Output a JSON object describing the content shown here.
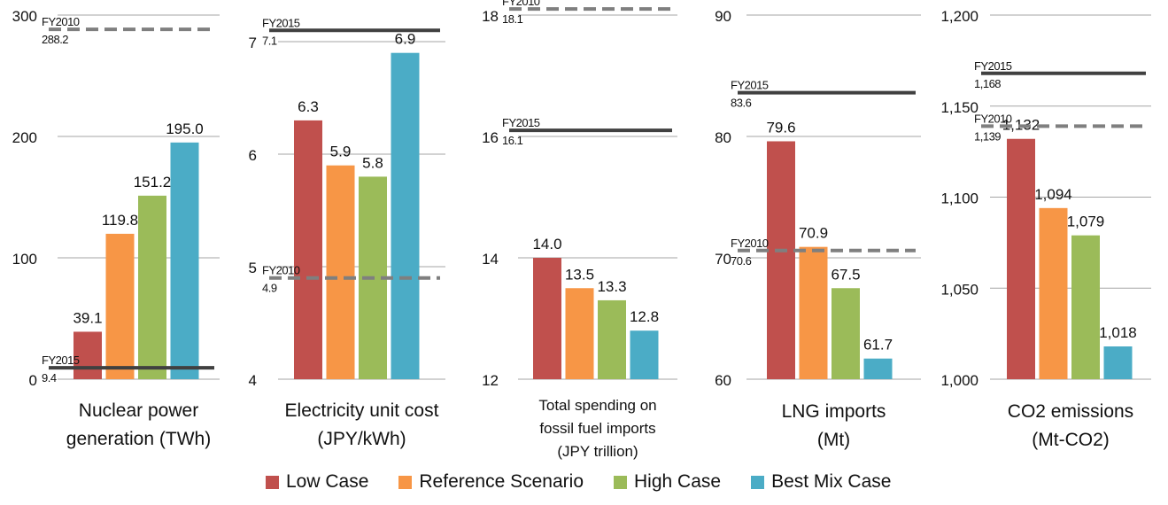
{
  "chart_data": [
    {
      "type": "bar",
      "title_lines": [
        "Nuclear power",
        "generation (TWh)"
      ],
      "categories": [
        "Low Case",
        "Reference Scenario",
        "High Case",
        "Best Mix Case"
      ],
      "values": [
        39.1,
        119.8,
        151.2,
        195.0
      ],
      "value_labels": [
        "39.1",
        "119.8",
        "151.2",
        "195.0"
      ],
      "ylim": [
        0,
        300
      ],
      "ticks": [
        0,
        100,
        200,
        300
      ],
      "tick_labels": [
        "0",
        "100",
        "200",
        "300"
      ],
      "references": [
        {
          "year": "FY2010",
          "value": 288.2,
          "label": "288.2",
          "style": "dashed"
        },
        {
          "year": "FY2015",
          "value": 9.4,
          "label": "9.4",
          "style": "solid"
        }
      ]
    },
    {
      "type": "bar",
      "title_lines": [
        "Electricity unit cost",
        "(JPY/kWh)"
      ],
      "categories": [
        "Low Case",
        "Reference Scenario",
        "High Case",
        "Best Mix Case"
      ],
      "values": [
        6.3,
        5.9,
        5.8,
        6.9
      ],
      "value_labels": [
        "6.3",
        "5.9",
        "5.8",
        "6.9"
      ],
      "ylim": [
        4,
        7.2
      ],
      "ticks": [
        4,
        5,
        6,
        7
      ],
      "tick_labels": [
        "4",
        "5",
        "6",
        "7"
      ],
      "references": [
        {
          "year": "FY2015",
          "value": 7.1,
          "label": "7.1",
          "style": "solid"
        },
        {
          "year": "FY2010",
          "value": 4.9,
          "label": "4.9",
          "style": "dashed"
        }
      ]
    },
    {
      "type": "bar",
      "title_lines": [
        "Total spending on",
        "fossil fuel imports",
        "(JPY trillion)"
      ],
      "categories": [
        "Low Case",
        "Reference Scenario",
        "High Case",
        "Best Mix Case"
      ],
      "values": [
        14.0,
        13.5,
        13.3,
        12.8
      ],
      "value_labels": [
        "14.0",
        "13.5",
        "13.3",
        "12.8"
      ],
      "ylim": [
        12,
        18.5
      ],
      "ticks": [
        12,
        14,
        16,
        18
      ],
      "tick_labels": [
        "12",
        "14",
        "16",
        "18"
      ],
      "references": [
        {
          "year": "FY2010",
          "value": 18.1,
          "label": "18.1",
          "style": "dashed"
        },
        {
          "year": "FY2015",
          "value": 16.1,
          "label": "16.1",
          "style": "solid"
        }
      ]
    },
    {
      "type": "bar",
      "title_lines": [
        "LNG imports",
        "(Mt)"
      ],
      "categories": [
        "Low Case",
        "Reference Scenario",
        "High Case",
        "Best Mix Case"
      ],
      "values": [
        79.6,
        70.9,
        67.5,
        61.7
      ],
      "value_labels": [
        "79.6",
        "70.9",
        "67.5",
        "61.7"
      ],
      "ylim": [
        60,
        90
      ],
      "ticks": [
        60,
        70,
        80,
        90
      ],
      "tick_labels": [
        "60",
        "70",
        "80",
        "90"
      ],
      "references": [
        {
          "year": "FY2015",
          "value": 83.6,
          "label": "83.6",
          "style": "solid"
        },
        {
          "year": "FY2010",
          "value": 70.6,
          "label": "70.6",
          "style": "dashed"
        }
      ]
    },
    {
      "type": "bar",
      "title_lines": [
        "CO2 emissions",
        "(Mt-CO2)"
      ],
      "categories": [
        "Low Case",
        "Reference Scenario",
        "High Case",
        "Best Mix Case"
      ],
      "values": [
        1132,
        1094,
        1079,
        1018
      ],
      "value_labels": [
        "1,132",
        "1,094",
        "1,079",
        "1,018"
      ],
      "ylim": [
        1000,
        1200
      ],
      "ticks": [
        1000,
        1050,
        1100,
        1150,
        1200
      ],
      "tick_labels": [
        "1,000",
        "1,050",
        "1,100",
        "1,150",
        "1,200"
      ],
      "references": [
        {
          "year": "FY2015",
          "value": 1168,
          "label": "1,168",
          "style": "solid"
        },
        {
          "year": "FY2010",
          "value": 1139,
          "label": "1,139",
          "style": "dashed"
        }
      ]
    }
  ],
  "legend": [
    {
      "label": "Low Case",
      "color": "#c0504d"
    },
    {
      "label": "Reference Scenario",
      "color": "#f79646"
    },
    {
      "label": "High Case",
      "color": "#9bbb59"
    },
    {
      "label": "Best Mix Case",
      "color": "#4bacc6"
    }
  ],
  "colors": {
    "bars": [
      "#c0504d",
      "#f79646",
      "#9bbb59",
      "#4bacc6"
    ],
    "ref_solid": "#404040",
    "ref_dashed": "#7f7f7f",
    "grid": "#a6a6a6"
  }
}
